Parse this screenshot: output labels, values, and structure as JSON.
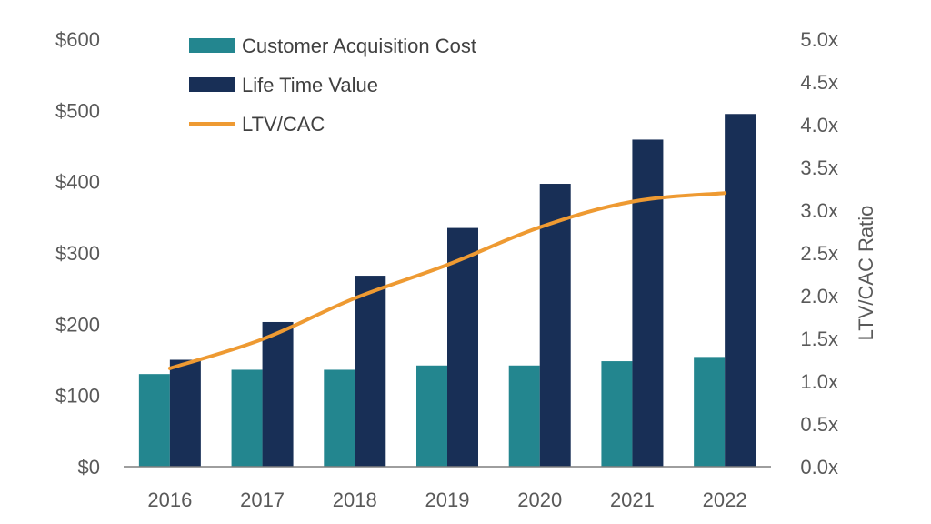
{
  "chart_data": {
    "type": "bar",
    "categories": [
      "2016",
      "2017",
      "2018",
      "2019",
      "2020",
      "2021",
      "2022"
    ],
    "series": [
      {
        "name": "Customer Acquisition Cost",
        "type": "bar",
        "axis": "left",
        "color": "#23868F",
        "values": [
          130,
          136,
          136,
          142,
          142,
          148,
          154
        ]
      },
      {
        "name": "Life Time Value",
        "type": "bar",
        "axis": "left",
        "color": "#182F56",
        "values": [
          150,
          203,
          268,
          335,
          397,
          459,
          495
        ]
      },
      {
        "name": "LTV/CAC",
        "type": "line",
        "axis": "right",
        "color": "#EE9A32",
        "values": [
          1.15,
          1.49,
          1.97,
          2.36,
          2.8,
          3.1,
          3.2
        ]
      }
    ],
    "y_left": {
      "ylim": [
        0,
        600
      ],
      "ticks": [
        0,
        100,
        200,
        300,
        400,
        500,
        600
      ],
      "tick_labels": [
        "$0",
        "$100",
        "$200",
        "$300",
        "$400",
        "$500",
        "$600"
      ]
    },
    "y_right": {
      "label": "LTV/CAC Ratio",
      "ylim": [
        0,
        5
      ],
      "ticks": [
        0,
        0.5,
        1,
        1.5,
        2,
        2.5,
        3,
        3.5,
        4,
        4.5,
        5
      ],
      "tick_labels": [
        "0.0x",
        "0.5x",
        "1.0x",
        "1.5x",
        "2.0x",
        "2.5x",
        "3.0x",
        "3.5x",
        "4.0x",
        "4.5x",
        "5.0x"
      ]
    },
    "title": "",
    "xlabel": "",
    "grid": false,
    "legend_position": "top-left"
  }
}
